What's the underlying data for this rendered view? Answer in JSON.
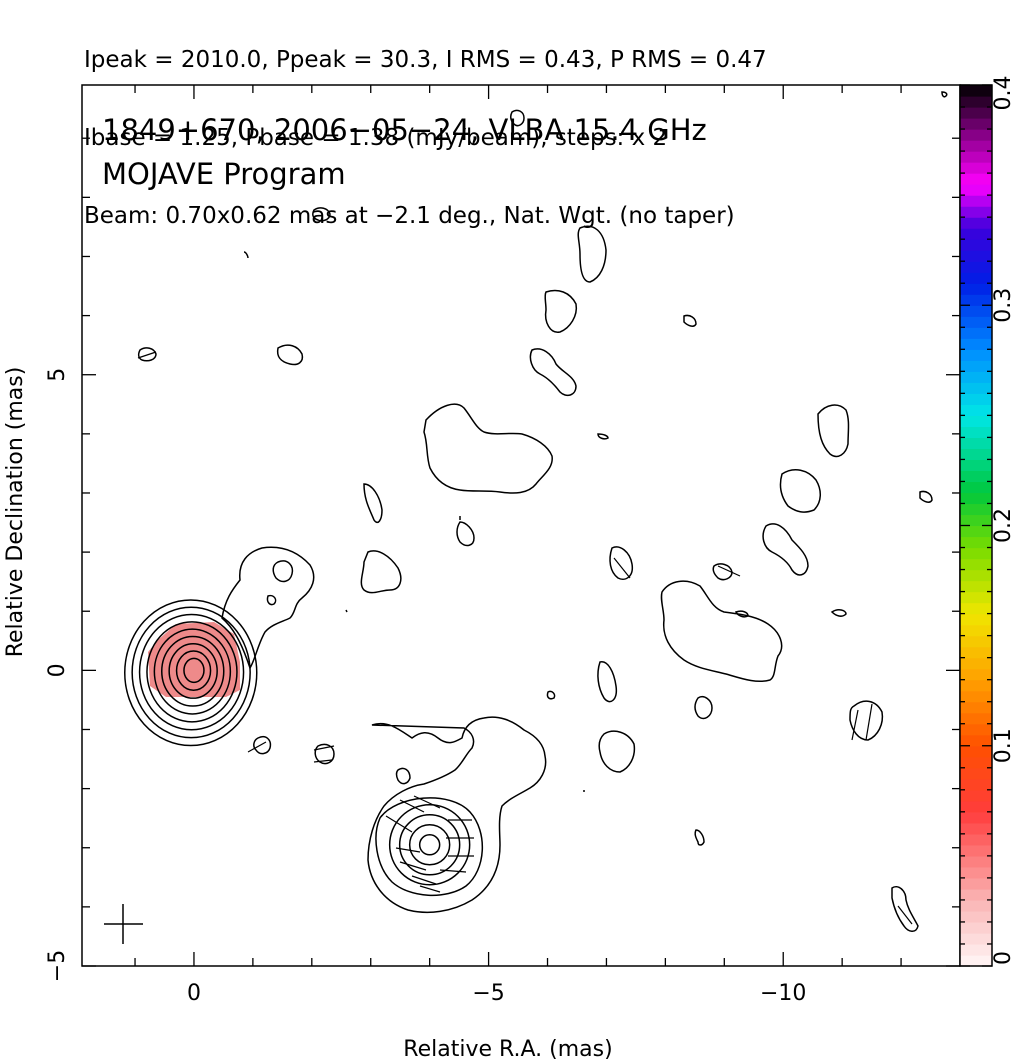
{
  "header": {
    "line1": "Ipeak = 2010.0, Ppeak = 30.3, I RMS = 0.43, P RMS = 0.47",
    "line2": "Ibase = 1.25, Pbase = 1.38 (mJy/beam), steps: x 2",
    "line3": "Beam: 0.70x0.62 mas at −2.1 deg., Nat. Wgt. (no taper)"
  },
  "chart_data": {
    "type": "heatmap",
    "title_lines": [
      "1849+670, 2006−05−24, VLBA 15.4 GHz",
      "MOJAVE Program"
    ],
    "xlabel": "Relative R.A. (mas)",
    "ylabel": "Relative Declination (mas)",
    "xlim": [
      1.9,
      -13.0
    ],
    "ylim": [
      -5.0,
      9.9
    ],
    "x_ticks": [
      {
        "value": 0,
        "label": "0"
      },
      {
        "value": -5,
        "label": "−5"
      },
      {
        "value": -10,
        "label": "−10"
      }
    ],
    "y_ticks": [
      {
        "value": -5,
        "label": "−5"
      },
      {
        "value": 0,
        "label": "0"
      },
      {
        "value": 5,
        "label": "5"
      }
    ],
    "colorbar": {
      "min": 0,
      "max": 0.4,
      "ticks": [
        {
          "value": 0,
          "label": "0"
        },
        {
          "value": 0.1,
          "label": "0.1"
        },
        {
          "value": 0.2,
          "label": "0.2"
        },
        {
          "value": 0.3,
          "label": "0.3"
        },
        {
          "value": 0.4,
          "label": "0.4"
        }
      ]
    },
    "components": [
      {
        "x": 0.0,
        "y": 0.0,
        "contour_levels": 9
      },
      {
        "x": -4.0,
        "y": -2.95,
        "contour_levels": 4
      }
    ],
    "core_fill_color": "#ee8a8a",
    "core_fill_value": 0.05
  }
}
